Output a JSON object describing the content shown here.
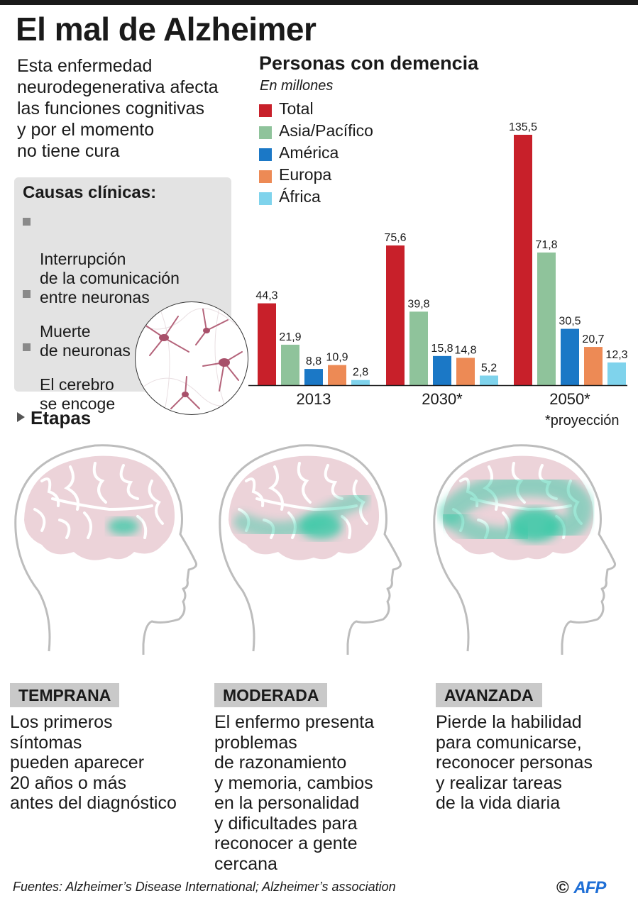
{
  "title": "El mal de Alzheimer",
  "intro": "Esta enfermedad\nneurodegenerativa afecta\nlas funciones cognitivas\ny por el momento\nno tiene cura",
  "causes": {
    "title": "Causas clínicas:",
    "items": [
      "Interrupción\nde la comunicación\nentre neuronas",
      "Muerte\nde neuronas",
      "El cerebro\nse encoge"
    ]
  },
  "chart_data": {
    "type": "bar",
    "title": "Personas con demencia",
    "subtitle": "En millones",
    "categories": [
      "2013",
      "2030*",
      "2050*"
    ],
    "series": [
      {
        "name": "Total",
        "color": "#c8202a",
        "values": [
          44.3,
          75.6,
          135.5
        ],
        "labels": [
          "44,3",
          "75,6",
          "135,5"
        ]
      },
      {
        "name": "Asia/Pacífico",
        "color": "#8fc39b",
        "values": [
          21.9,
          39.8,
          71.8
        ],
        "labels": [
          "21,9",
          "39,8",
          "71,8"
        ]
      },
      {
        "name": "América",
        "color": "#1b78c6",
        "values": [
          8.8,
          15.8,
          30.5
        ],
        "labels": [
          "8,8",
          "15,8",
          "30,5"
        ]
      },
      {
        "name": "Europa",
        "color": "#ed8a55",
        "values": [
          10.9,
          14.8,
          20.7
        ],
        "labels": [
          "10,9",
          "14,8",
          "20,7"
        ]
      },
      {
        "name": "África",
        "color": "#7fd3ec",
        "values": [
          2.8,
          5.2,
          12.3
        ],
        "labels": [
          "2,8",
          "5,2",
          "12,3"
        ]
      }
    ],
    "ylim": [
      0,
      135.5
    ],
    "grid": false,
    "legend": "top-left",
    "footnote": "*proyección"
  },
  "stages": {
    "heading": "Etapas",
    "items": [
      {
        "label": "TEMPRANA",
        "desc": "Los primeros\nsíntomas\npueden aparecer\n20 años o más\nantes del diagnóstico",
        "spread": 0.15
      },
      {
        "label": "MODERADA",
        "desc": "El enfermo presenta\nproblemas\nde razonamiento\ny memoria, cambios\nen la personalidad\ny dificultades para\nreconocer a gente\ncercana",
        "spread": 0.55
      },
      {
        "label": "AVANZADA",
        "desc": "Pierde la habilidad\npara comunicarse,\nreconocer personas\ny realizar tareas\nde la vida diaria",
        "spread": 1.0
      }
    ]
  },
  "sources": "Fuentes: Alzheimer’s Disease International; Alzheimer’s association",
  "credit": {
    "symbol": "©",
    "brand": "AFP"
  },
  "colors": {
    "brain": "#ecd3d9",
    "brain_fold": "#ffffff",
    "damage": "#35c9a6",
    "head_outline": "#bdbdbd"
  }
}
